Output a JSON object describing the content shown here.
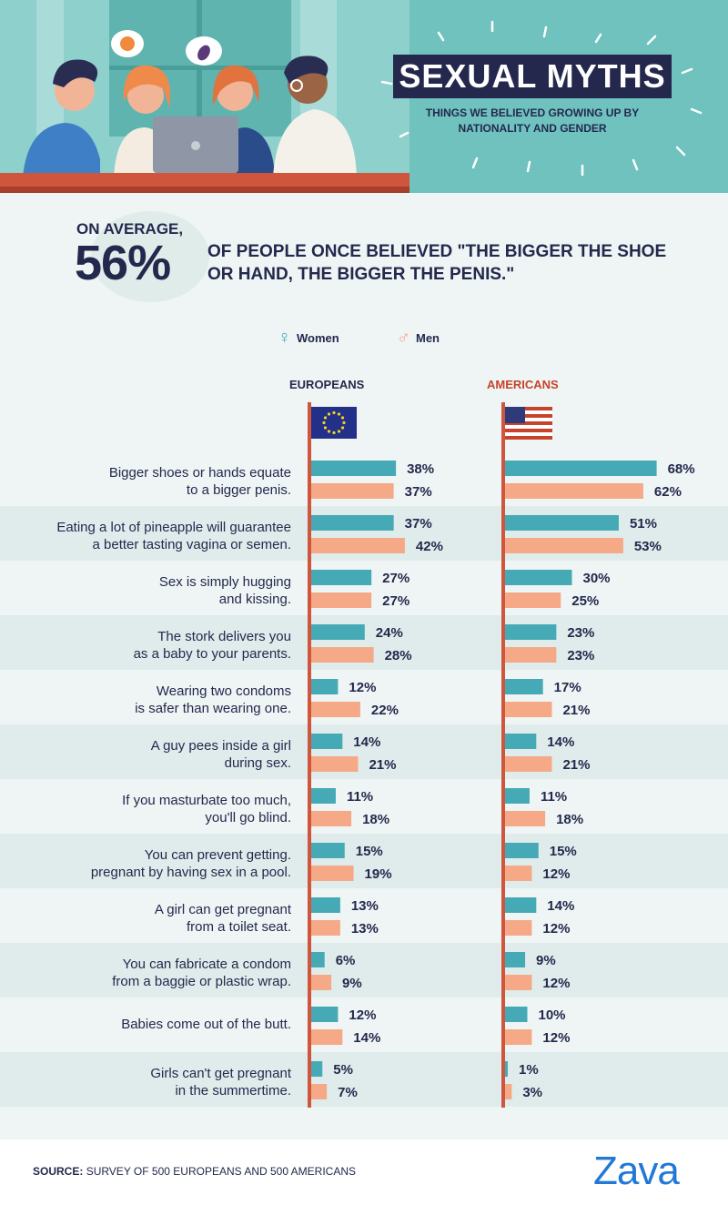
{
  "header": {
    "title": "SEXUAL MYTHS",
    "subtitle": "THINGS WE BELIEVED GROWING UP BY NATIONALITY AND GENDER"
  },
  "intro": {
    "prefix": "ON AVERAGE,",
    "percent": "56%",
    "text": "OF PEOPLE ONCE BELIEVED \"THE BIGGER THE SHOE OR HAND, THE BIGGER THE PENIS.\""
  },
  "legend": {
    "women": "Women",
    "men": "Men",
    "women_symbol": "♀",
    "men_symbol": "♂"
  },
  "colors": {
    "women": "#45aab5",
    "men": "#f6a987",
    "navy": "#24284d",
    "americans_title": "#c7432b",
    "pole": "#d0553d",
    "row_alt": "#dfeceb"
  },
  "chart_data": {
    "type": "bar",
    "groups": [
      "EUROPEANS",
      "AMERICANS"
    ],
    "series": [
      {
        "name": "Women",
        "europeans": [
          38,
          37,
          27,
          24,
          12,
          14,
          11,
          15,
          13,
          6,
          12,
          5
        ],
        "americans": [
          68,
          51,
          30,
          23,
          17,
          14,
          11,
          15,
          14,
          9,
          10,
          1
        ]
      },
      {
        "name": "Men",
        "europeans": [
          37,
          42,
          27,
          28,
          22,
          21,
          18,
          19,
          13,
          9,
          14,
          7
        ],
        "americans": [
          62,
          53,
          25,
          23,
          21,
          21,
          18,
          12,
          12,
          12,
          12,
          3
        ]
      }
    ],
    "categories": [
      [
        "Bigger shoes or hands equate",
        "to a bigger penis."
      ],
      [
        "Eating a lot of pineapple will guarantee",
        "a better tasting vagina or semen."
      ],
      [
        "Sex is simply hugging",
        "and kissing."
      ],
      [
        "The stork delivers you",
        "as a baby to your parents."
      ],
      [
        "Wearing two condoms",
        "is safer than wearing one."
      ],
      [
        "A guy pees inside a girl",
        "during sex."
      ],
      [
        "If you masturbate too much,",
        "you'll go blind."
      ],
      [
        "You can prevent getting.",
        "pregnant by having sex in a pool."
      ],
      [
        "A girl can get pregnant",
        "from a toilet seat."
      ],
      [
        "You can fabricate a condom",
        "from a baggie or plastic wrap."
      ],
      [
        "Babies come out of the butt."
      ],
      [
        "Girls can't get pregnant",
        "in the summertime."
      ]
    ],
    "value_suffix": "%"
  },
  "source": {
    "label": "SOURCE:",
    "text": "SURVEY OF 500 EUROPEANS AND 500 AMERICANS"
  },
  "logo": "Zava"
}
